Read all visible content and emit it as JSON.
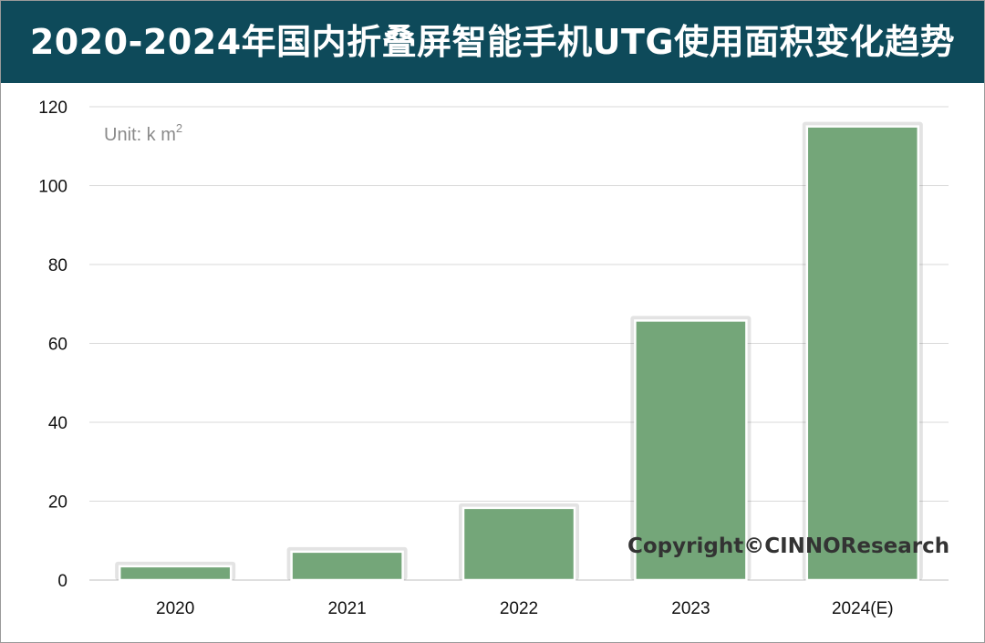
{
  "title": "2020-2024年国内折叠屏智能手机UTG使用面积变化趋势",
  "unit_label": "Unit: k m",
  "unit_superscript": "2",
  "copyright": "Copyright©CINNOResearch",
  "colors": {
    "title_bg": "#0e4a5a",
    "bar": "#74a679",
    "grid": "#d9d9d9"
  },
  "chart_data": {
    "type": "bar",
    "title": "2020-2024年国内折叠屏智能手机UTG使用面积变化趋势",
    "xlabel": "",
    "ylabel": "",
    "unit": "k m²",
    "categories": [
      "2020",
      "2021",
      "2022",
      "2023",
      "2024(E)"
    ],
    "values": [
      3.5,
      7.2,
      18.3,
      65.8,
      115
    ],
    "ylim": [
      0,
      120
    ],
    "yticks": [
      0,
      20,
      40,
      60,
      80,
      100,
      120
    ],
    "grid": true,
    "legend": "none"
  }
}
